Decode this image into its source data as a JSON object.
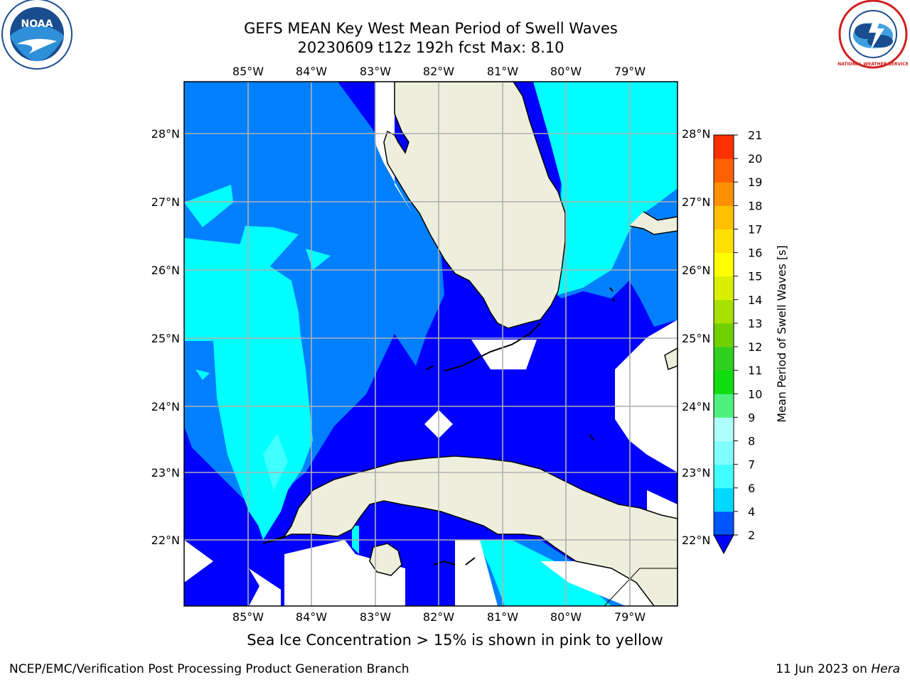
{
  "header": {
    "title_line1": "GEFS MEAN Key West Mean Period of Swell Waves",
    "title_line2": "20230609 t12z 192h fcst   Max: 8.10"
  },
  "logos": {
    "noaa_text": "NOAA",
    "nws_text": "NATIONAL WEATHER SERVICE"
  },
  "map": {
    "lon_labels": [
      "85°W",
      "84°W",
      "83°W",
      "82°W",
      "81°W",
      "80°W",
      "79°W"
    ],
    "lat_labels": [
      "28°N",
      "27°N",
      "26°N",
      "25°N",
      "24°N",
      "23°N",
      "22°N"
    ],
    "land_color": "#eeeedd",
    "grid_color": "#b0b0b0"
  },
  "colorbar": {
    "label": "Mean Period of Swell Waves [s]",
    "ticks": [
      "2",
      "4",
      "6",
      "7",
      "8",
      "9",
      "10",
      "11",
      "12",
      "13",
      "14",
      "15",
      "16",
      "17",
      "18",
      "19",
      "20",
      "21"
    ],
    "colors": [
      "#0055ff",
      "#00d9ff",
      "#40ffff",
      "#80ffff",
      "#b0ffff",
      "#50f080",
      "#10dd10",
      "#30d020",
      "#70d000",
      "#a8e000",
      "#d8f000",
      "#ffff00",
      "#ffe000",
      "#ffc000",
      "#ff9000",
      "#ff6000",
      "#ff3000",
      "#ff0000"
    ],
    "extend_color": "#0000ff"
  },
  "swell_colors": {
    "under_2": "#0000ff",
    "2_to_4": "#0080ff",
    "4_to_6": "#00ffff",
    "6_to_7": "#40ffff"
  },
  "notes": {
    "sea_ice": "Sea Ice Concentration > 15% is shown in pink to yellow"
  },
  "footer": {
    "left": "NCEP/EMC/Verification Post Processing Product Generation Branch",
    "date": "11 Jun 2023 on ",
    "host": "Hera"
  }
}
